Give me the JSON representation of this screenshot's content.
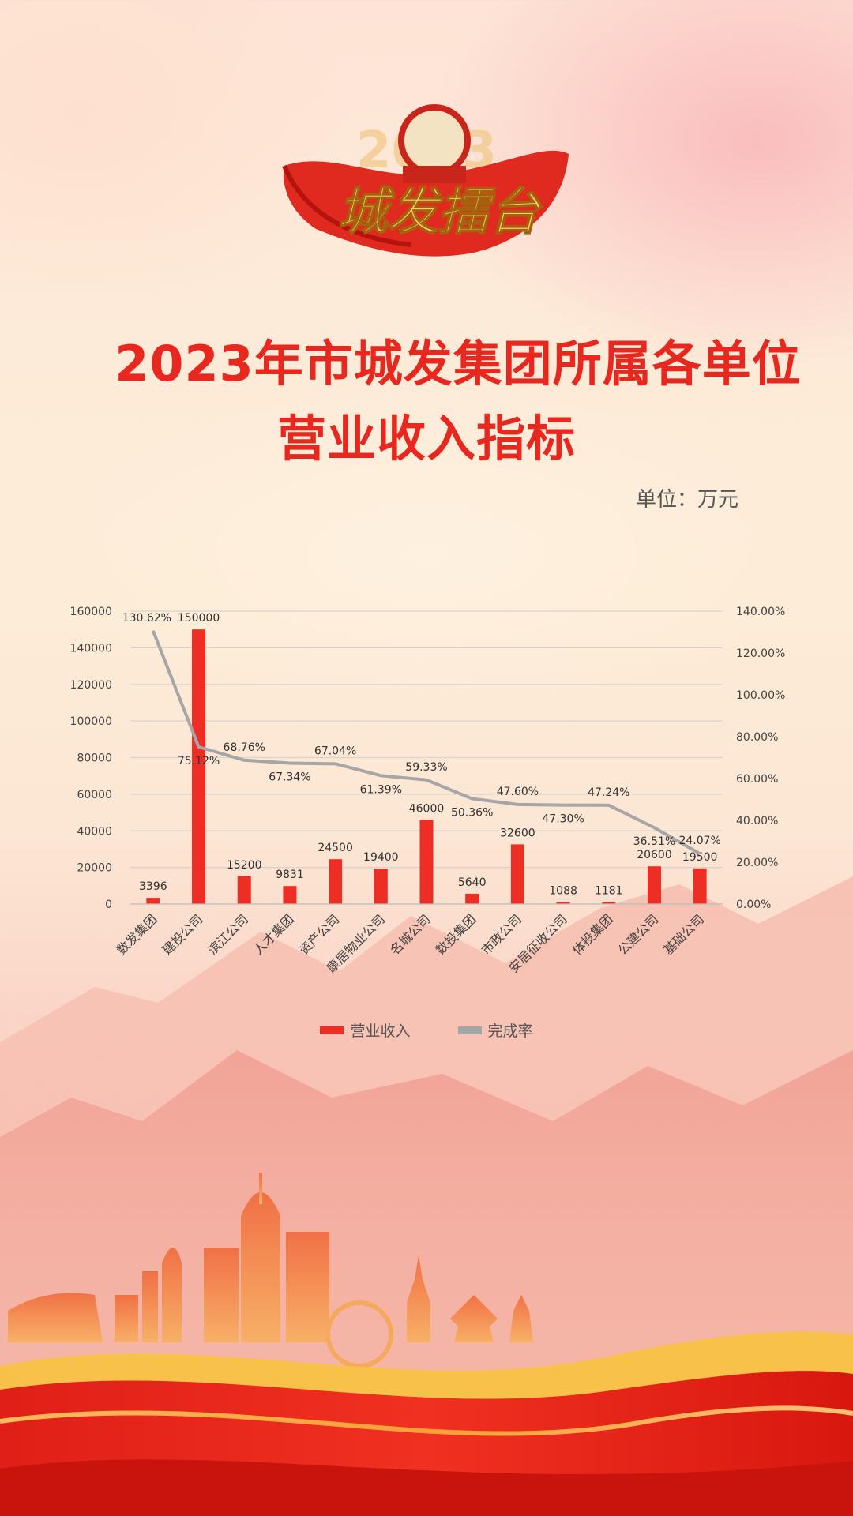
{
  "header": {
    "logo_text": "城发擂台",
    "logo_year": "2023",
    "title_line1": "2023年市城发集团所属各单位",
    "title_line2": "营业收入指标",
    "unit": "单位：万元"
  },
  "colors": {
    "bar": "#ee2d24",
    "line": "#a6a6a6",
    "title": "#e8281f"
  },
  "chart_data": {
    "type": "bar",
    "categories": [
      "数发集团",
      "建投公司",
      "滨江公司",
      "人才集团",
      "资产公司",
      "康居物业公司",
      "名城公司",
      "数投集团",
      "市政公司",
      "安居征收公司",
      "体投集团",
      "公建公司",
      "基础公司"
    ],
    "series": [
      {
        "name": "营业收入",
        "type": "bar",
        "axis": "left",
        "values": [
          3396,
          150000,
          15200,
          9831,
          24500,
          19400,
          46000,
          5640,
          32600,
          1088,
          1181,
          20600,
          19500
        ],
        "labels": [
          "3396",
          "150000",
          "15200",
          "9831",
          "24500",
          "19400",
          "46000",
          "5640",
          "32600",
          "1088",
          "1181",
          "20600",
          "19500"
        ]
      },
      {
        "name": "完成率",
        "type": "line",
        "axis": "right",
        "values": [
          130.62,
          75.12,
          68.76,
          67.34,
          67.04,
          61.39,
          59.33,
          50.36,
          47.6,
          47.3,
          47.24,
          36.51,
          24.07
        ],
        "labels": [
          "130.62%",
          "75.12%",
          "68.76%",
          "67.34%",
          "67.04%",
          "61.39%",
          "59.33%",
          "50.36%",
          "47.60%",
          "47.30%",
          "47.24%",
          "36.51%",
          "24.07%"
        ]
      }
    ],
    "y_left": {
      "min": 0,
      "max": 160000,
      "ticks": [
        "0",
        "20000",
        "40000",
        "60000",
        "80000",
        "100000",
        "120000",
        "140000",
        "160000"
      ]
    },
    "y_right": {
      "min": 0,
      "max": 140,
      "ticks": [
        "0.00%",
        "20.00%",
        "40.00%",
        "60.00%",
        "80.00%",
        "100.00%",
        "120.00%",
        "140.00%"
      ]
    },
    "grid": true,
    "legend_position": "bottom"
  }
}
